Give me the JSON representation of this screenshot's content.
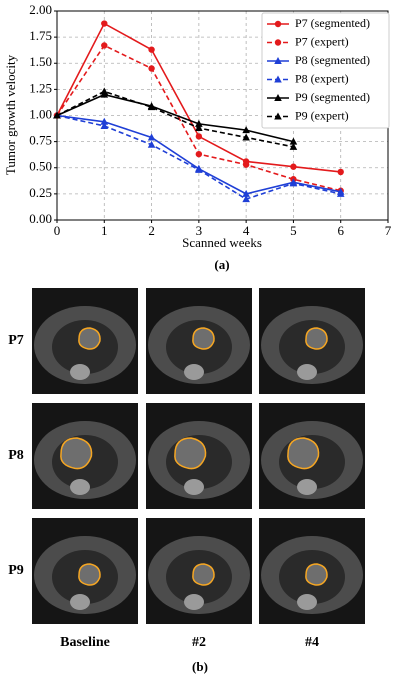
{
  "chart_data": {
    "type": "line",
    "x": [
      0,
      1,
      2,
      3,
      4,
      5,
      6
    ],
    "series": [
      {
        "name": "P7 (segmented)",
        "color": "#e31a1c",
        "marker": "circle",
        "linestyle": "solid",
        "values": [
          1.0,
          1.88,
          1.63,
          0.8,
          0.56,
          0.51,
          0.46
        ]
      },
      {
        "name": "P7 (expert)",
        "color": "#e31a1c",
        "marker": "circle",
        "linestyle": "dashed",
        "values": [
          1.0,
          1.67,
          1.45,
          0.63,
          0.53,
          0.39,
          0.28
        ]
      },
      {
        "name": "P8 (segmented)",
        "color": "#1f3fd6",
        "marker": "triangle",
        "linestyle": "solid",
        "values": [
          1.0,
          0.94,
          0.79,
          0.49,
          0.25,
          0.36,
          0.27
        ]
      },
      {
        "name": "P8 (expert)",
        "color": "#1f3fd6",
        "marker": "triangle",
        "linestyle": "dashed",
        "values": [
          1.0,
          0.9,
          0.72,
          0.48,
          0.2,
          0.35,
          0.25
        ]
      },
      {
        "name": "P9 (segmented)",
        "color": "#000000",
        "marker": "triangle",
        "linestyle": "solid",
        "values": [
          1.0,
          1.2,
          1.09,
          0.92,
          0.86,
          0.75,
          null
        ]
      },
      {
        "name": "P9 (expert)",
        "color": "#000000",
        "marker": "triangle",
        "linestyle": "dashed",
        "values": [
          1.0,
          1.23,
          1.08,
          0.88,
          0.79,
          0.7,
          null
        ]
      }
    ],
    "xlabel": "Scanned weeks",
    "ylabel": "Tumor growth velocity",
    "caption": "(a)",
    "xlim": [
      0,
      7
    ],
    "xticks": [
      0,
      1,
      2,
      3,
      4,
      5,
      6,
      7
    ],
    "ylim": [
      0,
      2
    ],
    "yticks": [
      {
        "value": 0,
        "label": "0.00"
      },
      {
        "value": 0.25,
        "label": "0.25"
      },
      {
        "value": 0.5,
        "label": "0.50"
      },
      {
        "value": 0.75,
        "label": "0.75"
      },
      {
        "value": 1,
        "label": "1.00"
      },
      {
        "value": 1.25,
        "label": "1.25"
      },
      {
        "value": 1.5,
        "label": "1.50"
      },
      {
        "value": 1.75,
        "label": "1.75"
      },
      {
        "value": 2,
        "label": "2.00"
      }
    ],
    "grid": true,
    "legend": "upper right"
  },
  "panel_b": {
    "rows": [
      "P7",
      "P8",
      "P9"
    ],
    "columns": [
      "Baseline",
      "#2",
      "#4"
    ],
    "caption": "(b)"
  }
}
